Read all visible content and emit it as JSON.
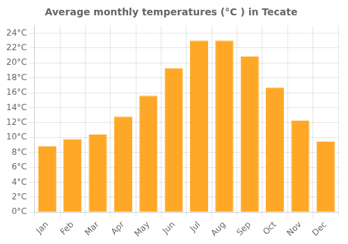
{
  "chart_data": {
    "type": "bar",
    "title": "Average monthly temperatures (°C ) in Tecate",
    "categories": [
      "Jan",
      "Feb",
      "Mar",
      "Apr",
      "May",
      "Jun",
      "Jul",
      "Aug",
      "Sep",
      "Oct",
      "Nov",
      "Dec"
    ],
    "values": [
      8.8,
      9.8,
      10.4,
      12.8,
      15.6,
      19.3,
      23.0,
      23.0,
      20.9,
      16.7,
      12.3,
      9.5
    ],
    "color": "#FFA726",
    "ylim": [
      0,
      25
    ],
    "yticks": [
      {
        "value": 0,
        "label": "0°C"
      },
      {
        "value": 2,
        "label": "2°C"
      },
      {
        "value": 4,
        "label": "4°C"
      },
      {
        "value": 6,
        "label": "6°C"
      },
      {
        "value": 8,
        "label": "8°C"
      },
      {
        "value": 10,
        "label": "10°C"
      },
      {
        "value": 12,
        "label": "12°C"
      },
      {
        "value": 14,
        "label": "14°C"
      },
      {
        "value": 16,
        "label": "16°C"
      },
      {
        "value": 18,
        "label": "18°C"
      },
      {
        "value": 20,
        "label": "20°C"
      },
      {
        "value": 22,
        "label": "22°C"
      },
      {
        "value": 24,
        "label": "24°C"
      }
    ],
    "grid": true
  }
}
